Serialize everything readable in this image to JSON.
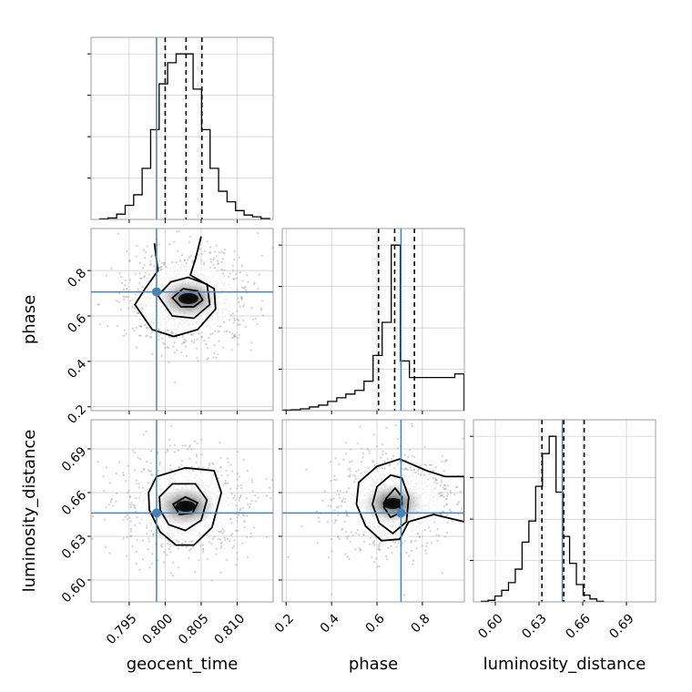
{
  "chart_data": {
    "type": "corner",
    "parameters": [
      "geocent_time",
      "phase",
      "luminosity_distance"
    ],
    "axis_ranges": {
      "geocent_time": [
        0.7897,
        0.815
      ],
      "phase": [
        0.183,
        0.985
      ],
      "luminosity_distance": [
        0.585,
        0.71
      ]
    },
    "ticks": {
      "geocent_time": {
        "values": [
          0.795,
          0.8,
          0.805,
          0.81
        ],
        "labels": [
          "0.795",
          "0.800",
          "0.805",
          "0.810"
        ]
      },
      "phase": {
        "values": [
          0.2,
          0.4,
          0.6,
          0.8
        ],
        "labels": [
          "0.2",
          "0.4",
          "0.6",
          "0.8"
        ]
      },
      "luminosity_distance": {
        "values": [
          0.6,
          0.63,
          0.66,
          0.69
        ],
        "labels": [
          "0.60",
          "0.63",
          "0.66",
          "0.69"
        ]
      }
    },
    "truths": {
      "geocent_time": 0.7988,
      "phase": 0.706,
      "luminosity_distance": 0.646
    },
    "quantiles": {
      "geocent_time": [
        0.8,
        0.8029,
        0.8051
      ],
      "phase": [
        0.607,
        0.678,
        0.765
      ],
      "luminosity_distance": [
        0.632,
        0.647,
        0.661
      ]
    },
    "histograms": {
      "geocent_time": {
        "edges_start": 0.7909,
        "bin_width": 0.00118,
        "counts": [
          0.3,
          0.8,
          3,
          8,
          14,
          29,
          51,
          77,
          89,
          94,
          94,
          74,
          51,
          29,
          16,
          10,
          5,
          2.5,
          1.5,
          0.5
        ]
      },
      "phase": {
        "edges_start": 0.183,
        "bin_width": 0.04,
        "counts": [
          0.3,
          0.5,
          1,
          2,
          3,
          5,
          7,
          9,
          11,
          16,
          30,
          48,
          90,
          27,
          18,
          18,
          18,
          18,
          18,
          20
        ]
      },
      "luminosity_distance": {
        "edges_start": 0.5904,
        "bin_width": 0.00466,
        "counts": [
          0.3,
          0.8,
          3,
          6,
          10,
          17,
          31,
          42,
          60,
          77,
          86,
          57,
          34,
          20,
          9,
          3.5,
          1.5,
          0.3
        ]
      }
    },
    "contours_2d": {
      "phase_vs_geocent_time": [
        [
          [
            0.7985,
            0.92
          ],
          [
            0.799,
            0.8
          ],
          [
            0.7972,
            0.72
          ],
          [
            0.7958,
            0.65
          ],
          [
            0.7982,
            0.54
          ],
          [
            0.8012,
            0.51
          ],
          [
            0.8045,
            0.54
          ],
          [
            0.807,
            0.63
          ],
          [
            0.8068,
            0.72
          ],
          [
            0.8035,
            0.78
          ],
          [
            0.8042,
            0.85
          ],
          [
            0.805,
            0.95
          ]
        ],
        [
          [
            0.799,
            0.69
          ],
          [
            0.801,
            0.6
          ],
          [
            0.804,
            0.59
          ],
          [
            0.8062,
            0.65
          ],
          [
            0.8058,
            0.74
          ],
          [
            0.8032,
            0.77
          ],
          [
            0.8008,
            0.75
          ]
        ],
        [
          [
            0.801,
            0.68
          ],
          [
            0.8022,
            0.64
          ],
          [
            0.804,
            0.64
          ],
          [
            0.8052,
            0.67
          ],
          [
            0.8045,
            0.71
          ],
          [
            0.8025,
            0.72
          ]
        ]
      ],
      "luminosity_distance_vs_geocent_time": [
        [
          [
            0.7977,
            0.66
          ],
          [
            0.7988,
            0.671
          ],
          [
            0.8028,
            0.677
          ],
          [
            0.8068,
            0.675
          ],
          [
            0.8078,
            0.66
          ],
          [
            0.8065,
            0.636
          ],
          [
            0.804,
            0.624
          ],
          [
            0.8015,
            0.624
          ],
          [
            0.7993,
            0.633
          ],
          [
            0.7978,
            0.648
          ]
        ],
        [
          [
            0.7992,
            0.657
          ],
          [
            0.801,
            0.666
          ],
          [
            0.8042,
            0.666
          ],
          [
            0.8058,
            0.655
          ],
          [
            0.805,
            0.641
          ],
          [
            0.8028,
            0.634
          ],
          [
            0.8005,
            0.638
          ],
          [
            0.7993,
            0.648
          ]
        ],
        [
          [
            0.8011,
            0.652
          ],
          [
            0.8028,
            0.657
          ],
          [
            0.8045,
            0.653
          ],
          [
            0.8038,
            0.646
          ],
          [
            0.802,
            0.645
          ]
        ]
      ],
      "luminosity_distance_vs_phase": [
        [
          [
            0.985,
            0.671
          ],
          [
            0.9,
            0.671
          ],
          [
            0.82,
            0.675
          ],
          [
            0.7,
            0.683
          ],
          [
            0.6,
            0.678
          ],
          [
            0.52,
            0.667
          ],
          [
            0.51,
            0.652
          ],
          [
            0.55,
            0.637
          ],
          [
            0.62,
            0.627
          ],
          [
            0.7,
            0.628
          ],
          [
            0.74,
            0.64
          ],
          [
            0.85,
            0.645
          ],
          [
            0.985,
            0.64
          ]
        ],
        [
          [
            0.6,
            0.664
          ],
          [
            0.66,
            0.672
          ],
          [
            0.71,
            0.67
          ],
          [
            0.74,
            0.657
          ],
          [
            0.73,
            0.64
          ],
          [
            0.67,
            0.632
          ],
          [
            0.61,
            0.639
          ],
          [
            0.58,
            0.652
          ]
        ],
        [
          [
            0.64,
            0.656
          ],
          [
            0.68,
            0.663
          ],
          [
            0.71,
            0.657
          ],
          [
            0.7,
            0.646
          ],
          [
            0.66,
            0.643
          ],
          [
            0.63,
            0.65
          ]
        ]
      ]
    },
    "grid": true
  }
}
